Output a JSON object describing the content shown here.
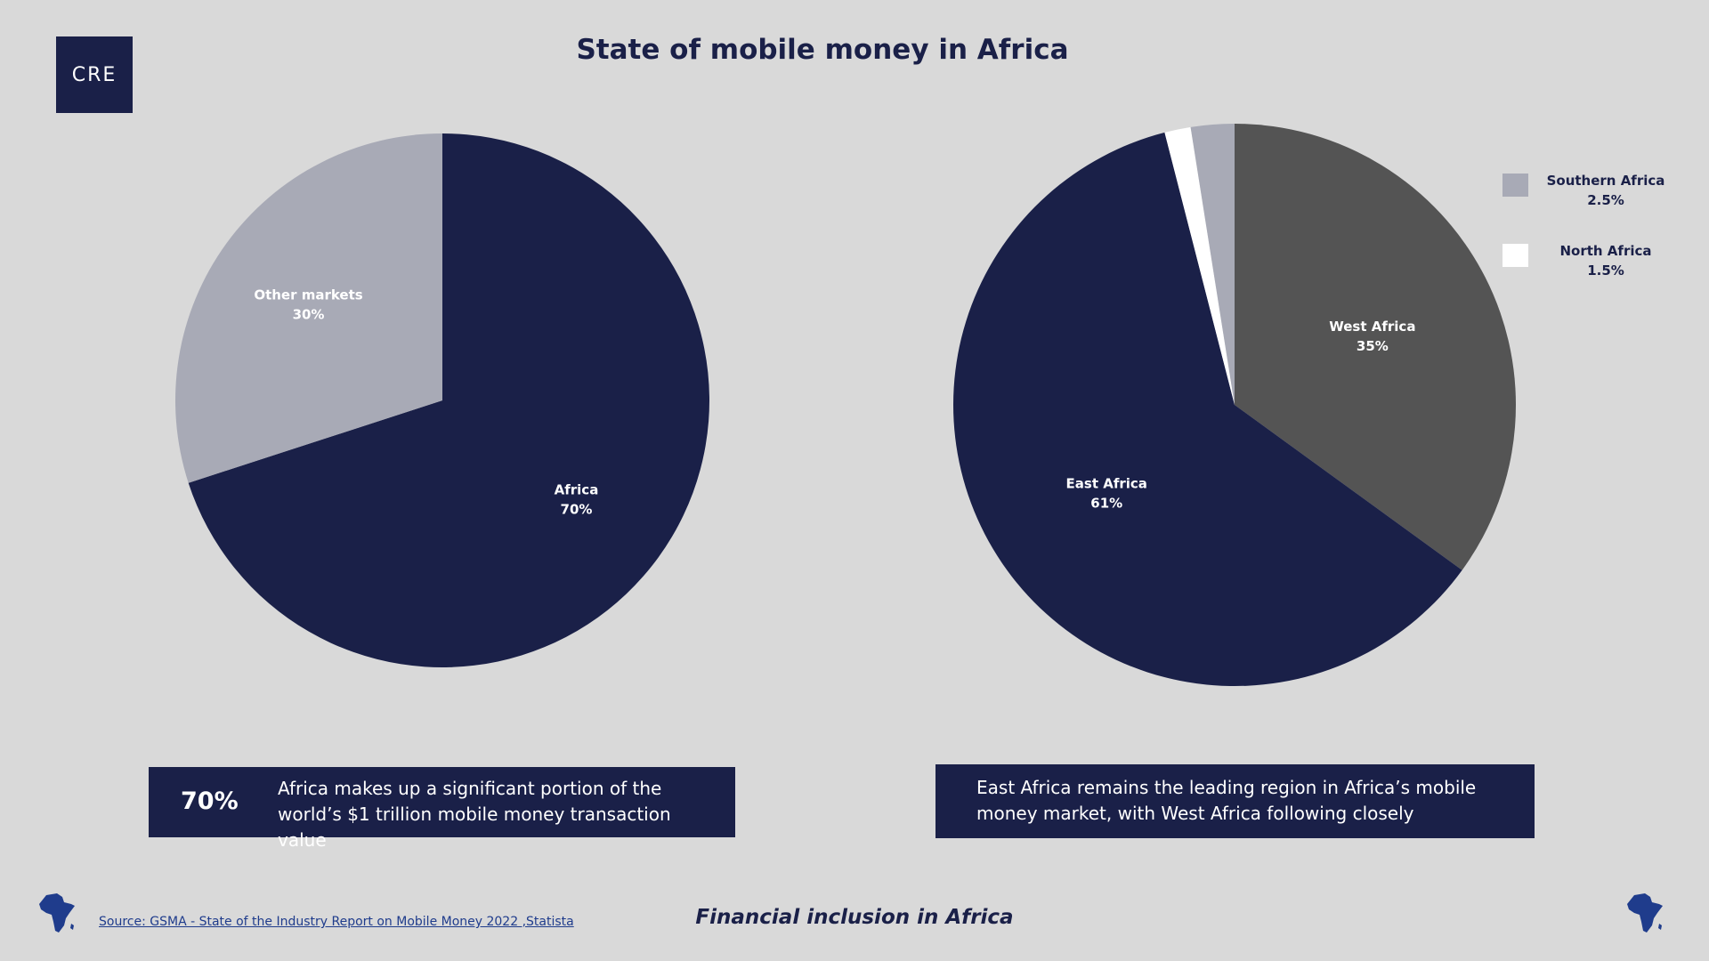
{
  "logo": {
    "text": "CRE"
  },
  "page": {
    "title": "State of mobile money in Africa",
    "footer_title": "Financial inclusion in Africa",
    "source": "Source: GSMA - State of the Industry Report on Mobile Money 2022 ,Statista"
  },
  "colors": {
    "navy": "#1a2048",
    "light_gray": "#a8aab6",
    "dark_gray": "#545454",
    "white": "#ffffff",
    "background": "#d9d9d9"
  },
  "chart_data": [
    {
      "type": "pie",
      "title": "",
      "slices": [
        {
          "label": "Africa",
          "value": 70,
          "value_label": "70%",
          "color": "#1a2048",
          "label_color": "#ffffff"
        },
        {
          "label": "Other markets",
          "value": 30,
          "value_label": "30%",
          "color": "#a8aab6",
          "label_color": "#ffffff"
        }
      ]
    },
    {
      "type": "pie",
      "title": "",
      "slices": [
        {
          "label": "West Africa",
          "value": 35,
          "value_label": "35%",
          "color": "#545454",
          "label_color": "#ffffff"
        },
        {
          "label": "East Africa",
          "value": 61,
          "value_label": "61%",
          "color": "#1a2048",
          "label_color": "#ffffff"
        },
        {
          "label": "North Africa",
          "value": 1.5,
          "value_label": "1.5%",
          "color": "#ffffff"
        },
        {
          "label": "Southern Africa",
          "value": 2.5,
          "value_label": "2.5%",
          "color": "#a8aab6"
        }
      ],
      "legend": {
        "placement": "top-right",
        "items": [
          {
            "label": "Southern Africa",
            "value_label": "2.5%",
            "color": "#a8aab6"
          },
          {
            "label": "North Africa",
            "value_label": "1.5%",
            "color": "#ffffff"
          }
        ]
      }
    }
  ],
  "callouts": {
    "left": {
      "stat": "70%",
      "text": "Africa makes up a significant portion of the world’s $1 trillion mobile money transaction value"
    },
    "right": {
      "text": "East Africa remains the leading region in Africa’s mobile money market, with West Africa following closely"
    }
  },
  "icons": {
    "left": "africa-map-icon",
    "right": "africa-map-icon"
  }
}
